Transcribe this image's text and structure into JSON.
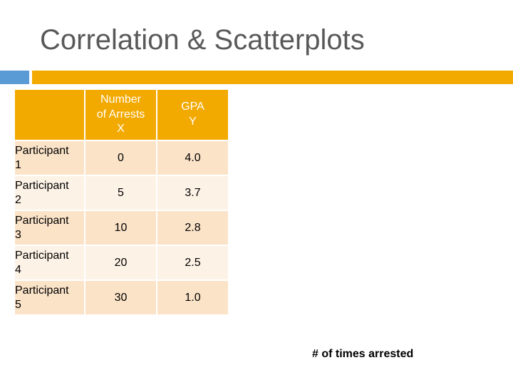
{
  "title": "Correlation & Scatterplots",
  "accent_colors": {
    "blue": "#5b9bd5",
    "orange": "#f2a900"
  },
  "table": {
    "headers": [
      {
        "line1": "",
        "line2": "",
        "line3": ""
      },
      {
        "line1": "Number",
        "line2": "of Arrests",
        "line3": "X"
      },
      {
        "line1": "GPA",
        "line2": "Y",
        "line3": ""
      }
    ],
    "rows": [
      {
        "label_line1": "Participant",
        "label_line2": "1",
        "x": "0",
        "y": "4.0"
      },
      {
        "label_line1": "Participant",
        "label_line2": "2",
        "x": "5",
        "y": "3.7"
      },
      {
        "label_line1": "Participant",
        "label_line2": "3",
        "x": "10",
        "y": "2.8"
      },
      {
        "label_line1": "Participant",
        "label_line2": "4",
        "x": "20",
        "y": "2.5"
      },
      {
        "label_line1": "Participant",
        "label_line2": "5",
        "x": "30",
        "y": "1.0"
      }
    ]
  },
  "axis_caption": "# of times arrested"
}
